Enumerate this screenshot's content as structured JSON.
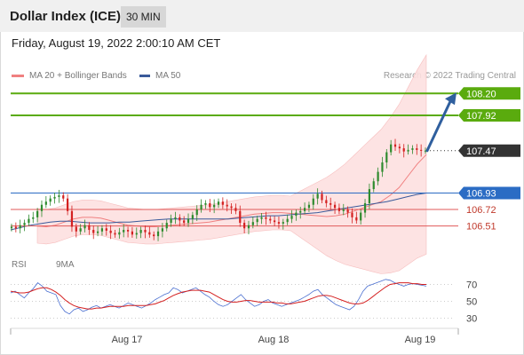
{
  "header": {
    "title": "Dollar Index (ICE)",
    "timeframe": "30 MIN",
    "datetime": "Friday, August 19, 2022 2:00:10 AM CET"
  },
  "legend": {
    "bollinger": "MA 20 + Bollinger Bands",
    "ma50": "MA 50",
    "credit": "Research © 2022 Trading Central"
  },
  "rsi_legend": {
    "rsi": "RSI",
    "ma": "9MA"
  },
  "colors": {
    "bull": "#2e8b2e",
    "bear": "#d42020",
    "green_level": "#5aab0e",
    "blue_level": "#2b6cc4",
    "red_level": "#e05a5a",
    "arrow": "#2f5f9e",
    "bollinger_fill": "#fde0e0",
    "ma20": "#f08080",
    "ma50": "#3a5a9a",
    "rsi": "#4a6fd0",
    "rsi_ma": "#d42020"
  },
  "chart_data": [
    {
      "type": "candlestick",
      "title": "Dollar Index (ICE)",
      "timeframe": "30 MIN",
      "x_ticks": [
        "Aug 17",
        "Aug 18",
        "Aug 19"
      ],
      "ylim": [
        106.2,
        108.35
      ],
      "levels": [
        {
          "value": 108.2,
          "label": "108.20",
          "kind": "resistance"
        },
        {
          "value": 107.92,
          "label": "107.92",
          "kind": "resistance"
        },
        {
          "value": 107.47,
          "label": "107.47",
          "kind": "last"
        },
        {
          "value": 106.93,
          "label": "106.93",
          "kind": "pivot"
        },
        {
          "value": 106.72,
          "label": "106.72",
          "kind": "support"
        },
        {
          "value": 106.51,
          "label": "106.51",
          "kind": "support"
        }
      ],
      "arrow": {
        "from": 107.47,
        "to": 108.2
      },
      "closes": [
        106.5,
        106.48,
        106.52,
        106.55,
        106.6,
        106.62,
        106.7,
        106.78,
        106.82,
        106.86,
        106.88,
        106.9,
        106.86,
        106.7,
        106.5,
        106.44,
        106.48,
        106.52,
        106.46,
        106.42,
        106.44,
        106.48,
        106.45,
        106.42,
        106.4,
        106.43,
        106.46,
        106.44,
        106.4,
        106.42,
        106.46,
        106.43,
        106.4,
        106.38,
        106.44,
        106.48,
        106.55,
        106.6,
        106.62,
        106.58,
        106.55,
        106.6,
        106.65,
        106.72,
        106.78,
        106.8,
        106.75,
        106.78,
        106.82,
        106.78,
        106.76,
        106.74,
        106.7,
        106.55,
        106.48,
        106.52,
        106.56,
        106.6,
        106.62,
        106.6,
        106.58,
        106.56,
        106.54,
        106.56,
        106.6,
        106.64,
        106.68,
        106.7,
        106.74,
        106.78,
        106.86,
        106.92,
        106.84,
        106.8,
        106.78,
        106.74,
        106.7,
        106.72,
        106.68,
        106.62,
        106.58,
        106.68,
        106.8,
        106.98,
        107.08,
        107.2,
        107.32,
        107.45,
        107.55,
        107.52,
        107.5,
        107.46,
        107.48,
        107.5,
        107.48,
        107.47,
        107.47
      ],
      "ma20": [
        106.51,
        106.5,
        106.52,
        106.56,
        106.6,
        106.62,
        106.62,
        106.61,
        106.58,
        106.55,
        106.52,
        106.51,
        106.5,
        106.5,
        106.51,
        106.52,
        106.53,
        106.54,
        106.55,
        106.56,
        106.58,
        106.6,
        106.62,
        106.64,
        106.66,
        106.67,
        106.68,
        106.68,
        106.67,
        106.66,
        106.65,
        106.64,
        106.63,
        106.64,
        106.66,
        106.7,
        106.74,
        106.78,
        106.82,
        106.9,
        107.0,
        107.15,
        107.3,
        107.42
      ],
      "ma50": [
        106.46,
        106.49,
        106.52,
        106.54,
        106.56,
        106.57,
        106.57,
        106.56,
        106.55,
        106.55,
        106.55,
        106.56,
        106.56,
        106.57,
        106.58,
        106.59,
        106.6,
        106.6,
        106.6,
        106.6,
        106.6,
        106.6,
        106.6,
        106.61,
        106.62,
        106.63,
        106.64,
        106.64,
        106.65,
        106.66,
        106.67,
        106.68,
        106.7,
        106.72,
        106.74,
        106.76,
        106.78,
        106.8,
        106.82,
        106.85,
        106.88,
        106.91,
        106.93
      ]
    },
    {
      "type": "line",
      "title": "RSI",
      "ylim": [
        20,
        80
      ],
      "y_ticks": [
        70,
        50,
        30
      ],
      "series": [
        {
          "name": "RSI",
          "values": [
            60,
            62,
            58,
            54,
            60,
            65,
            72,
            68,
            62,
            60,
            58,
            45,
            38,
            35,
            40,
            42,
            38,
            40,
            43,
            45,
            42,
            44,
            46,
            44,
            42,
            45,
            48,
            46,
            44,
            42,
            45,
            48,
            52,
            55,
            58,
            60,
            66,
            64,
            60,
            62,
            64,
            66,
            62,
            58,
            55,
            50,
            46,
            44,
            46,
            50,
            54,
            58,
            52,
            48,
            44,
            46,
            50,
            52,
            48,
            46,
            44,
            46,
            48,
            50,
            52,
            55,
            58,
            62,
            64,
            58,
            54,
            50,
            46,
            44,
            42,
            40,
            44,
            52,
            62,
            68,
            70,
            72,
            74,
            76,
            75,
            72,
            70,
            68,
            70,
            71,
            70,
            69,
            68
          ]
        },
        {
          "name": "9MA",
          "values": [
            62,
            61,
            60,
            60,
            61,
            63,
            65,
            66,
            66,
            64,
            61,
            57,
            52,
            48,
            45,
            43,
            42,
            41,
            41,
            42,
            42,
            43,
            44,
            44,
            44,
            44,
            45,
            45,
            45,
            45,
            45,
            46,
            47,
            49,
            51,
            54,
            57,
            59,
            61,
            62,
            63,
            63,
            63,
            62,
            61,
            58,
            55,
            52,
            50,
            49,
            49,
            50,
            51,
            51,
            50,
            49,
            49,
            49,
            49,
            48,
            48,
            47,
            47,
            48,
            49,
            50,
            52,
            54,
            56,
            57,
            57,
            56,
            54,
            52,
            50,
            48,
            47,
            47,
            48,
            51,
            55,
            59,
            63,
            67,
            70,
            71,
            72,
            72,
            72,
            71,
            71,
            70,
            70
          ]
        }
      ]
    }
  ]
}
